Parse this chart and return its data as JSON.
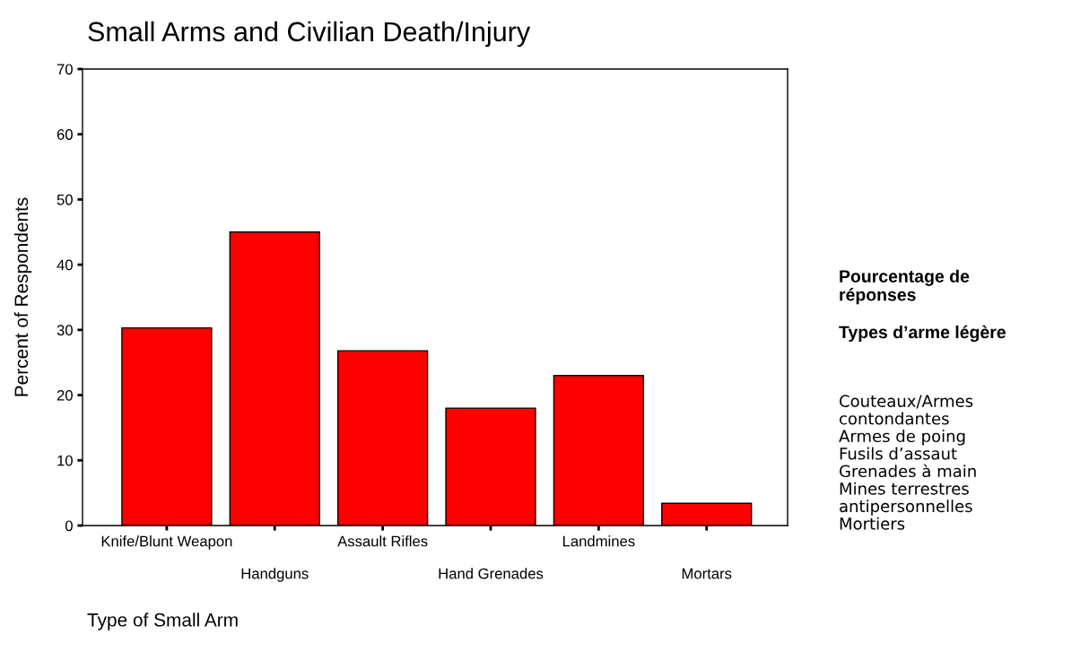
{
  "chart_data": {
    "type": "bar",
    "title": "Small Arms and Civilian Death/Injury",
    "xlabel": "Type of Small Arm",
    "ylabel": "Percent of Respondents",
    "categories": [
      "Knife/Blunt Weapon",
      "Handguns",
      "Assault Rifles",
      "Hand Grenades",
      "Landmines",
      "Mortars"
    ],
    "values": [
      30.3,
      45.0,
      26.8,
      18.0,
      23.0,
      3.4
    ],
    "color": "#ff0000",
    "ylim": [
      0,
      70
    ],
    "yticks": [
      0,
      10,
      20,
      30,
      40,
      50,
      60,
      70
    ],
    "grid": false,
    "annotations": [
      "Pourcentage de\nréponses",
      "Types d’arme légère",
      "Couteaux/Armes\ncontondantes\nArmes de poing\nFusils d’assaut\nGrenades à main\nMines terrestres\nantipersonnelles\nMortiers"
    ]
  }
}
